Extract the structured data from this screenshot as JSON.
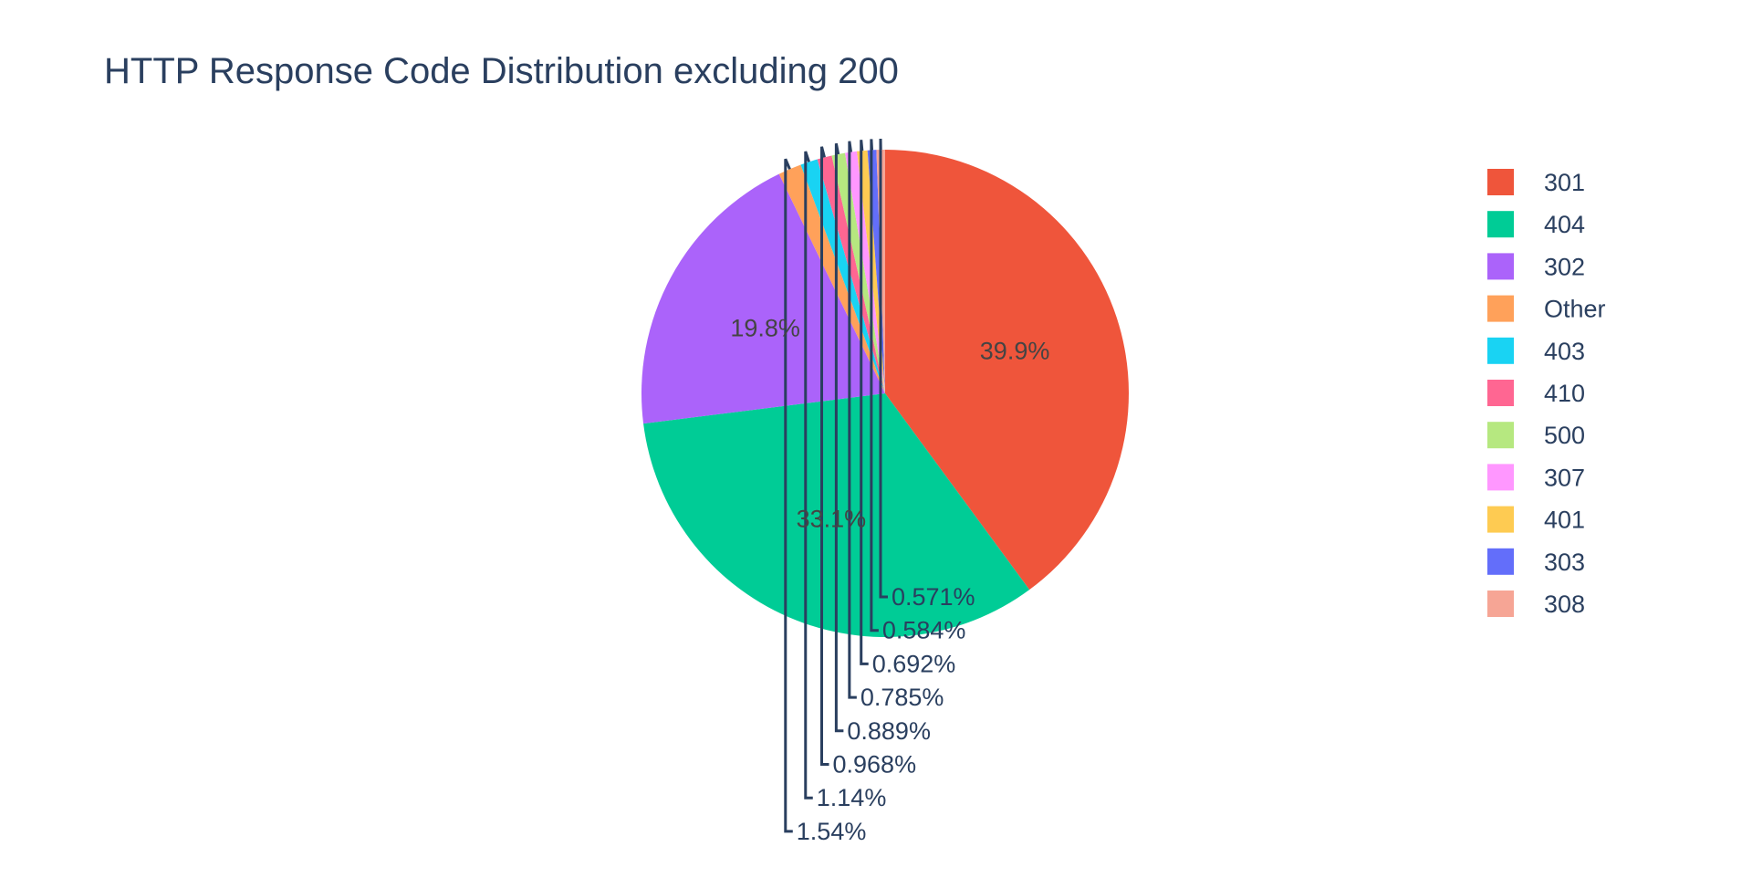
{
  "chart_data": {
    "type": "pie",
    "title": "HTTP Response Code Distribution excluding 200",
    "legend_position": "right",
    "slices": [
      {
        "label": "301",
        "value": 39.9,
        "display": "39.9%",
        "color": "#EF553B",
        "text_position": "inside"
      },
      {
        "label": "404",
        "value": 33.1,
        "display": "33.1%",
        "color": "#00CC96",
        "text_position": "inside"
      },
      {
        "label": "302",
        "value": 19.8,
        "display": "19.8%",
        "color": "#AB63FA",
        "text_position": "inside"
      },
      {
        "label": "Other",
        "value": 1.54,
        "display": "1.54%",
        "color": "#FFA15A",
        "text_position": "outside"
      },
      {
        "label": "403",
        "value": 1.14,
        "display": "1.14%",
        "color": "#19D3F3",
        "text_position": "outside"
      },
      {
        "label": "410",
        "value": 0.968,
        "display": "0.968%",
        "color": "#FF6692",
        "text_position": "outside"
      },
      {
        "label": "500",
        "value": 0.889,
        "display": "0.889%",
        "color": "#B6E880",
        "text_position": "outside"
      },
      {
        "label": "307",
        "value": 0.785,
        "display": "0.785%",
        "color": "#FF97FF",
        "text_position": "outside"
      },
      {
        "label": "401",
        "value": 0.692,
        "display": "0.692%",
        "color": "#FECB52",
        "text_position": "outside"
      },
      {
        "label": "303",
        "value": 0.584,
        "display": "0.584%",
        "color": "#636EFA",
        "text_position": "outside"
      },
      {
        "label": "308",
        "value": 0.571,
        "display": "0.571%",
        "color": "#F6A595",
        "text_position": "outside"
      }
    ]
  }
}
